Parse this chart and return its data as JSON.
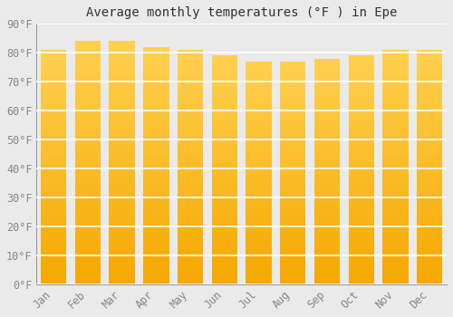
{
  "title": "Average monthly temperatures (°F ) in Epe",
  "months": [
    "Jan",
    "Feb",
    "Mar",
    "Apr",
    "May",
    "Jun",
    "Jul",
    "Aug",
    "Sep",
    "Oct",
    "Nov",
    "Dec"
  ],
  "values": [
    81,
    84,
    84,
    82,
    81,
    79,
    77,
    77,
    78,
    79,
    81,
    81
  ],
  "ylim": [
    0,
    90
  ],
  "yticks": [
    0,
    10,
    20,
    30,
    40,
    50,
    60,
    70,
    80,
    90
  ],
  "ytick_labels": [
    "0°F",
    "10°F",
    "20°F",
    "30°F",
    "40°F",
    "50°F",
    "60°F",
    "70°F",
    "80°F",
    "90°F"
  ],
  "bar_color_bottom": "#F5A800",
  "bar_color_top": "#FFD050",
  "bar_color_right_edge": "#D88800",
  "background_color": "#eaeaea",
  "grid_color": "#ffffff",
  "title_fontsize": 10,
  "tick_fontsize": 8.5,
  "bar_width": 0.75,
  "n_segments": 200
}
